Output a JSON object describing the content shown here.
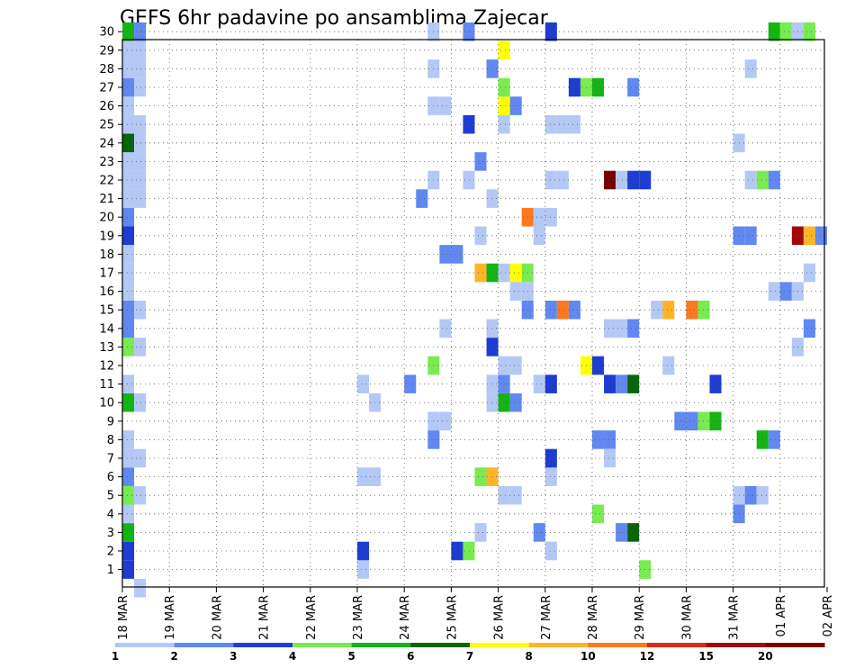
{
  "chart_data": {
    "type": "heatmap",
    "title": "GEFS 6hr padavine po ansamblima Zajecar",
    "x_ticks": [
      "18 MAR",
      "19 MAR",
      "20 MAR",
      "21 MAR",
      "22 MAR",
      "23 MAR",
      "24 MAR",
      "25 MAR",
      "26 MAR",
      "27 MAR",
      "28 MAR",
      "29 MAR",
      "30 MAR",
      "31 MAR",
      "01 APR",
      "02 APR"
    ],
    "y_ticks": [
      "1",
      "2",
      "3",
      "4",
      "5",
      "6",
      "7",
      "8",
      "9",
      "10",
      "11",
      "12",
      "13",
      "14",
      "15",
      "16",
      "17",
      "18",
      "19",
      "20",
      "21",
      "22",
      "23",
      "24",
      "25",
      "26",
      "27",
      "28",
      "29",
      "30"
    ],
    "colorbar": {
      "labels": [
        "1",
        "2",
        "3",
        "4",
        "5",
        "6",
        "7",
        "8",
        "10",
        "12",
        "15",
        "20"
      ],
      "colors": [
        "#b4c8f5",
        "#6088f0",
        "#1e3cd2",
        "#78eb50",
        "#14b414",
        "#0a640a",
        "#ffff00",
        "#ffb428",
        "#ff781e",
        "#dc2814",
        "#a00a0a",
        "#780000"
      ]
    },
    "grid": true,
    "cells": [
      [
        0.0,
        1,
        3
      ],
      [
        0.0,
        2,
        3
      ],
      [
        0.0,
        3,
        5
      ],
      [
        0.0,
        4,
        1
      ],
      [
        0.0,
        5,
        4
      ],
      [
        0.0,
        6,
        2
      ],
      [
        0.0,
        7,
        1
      ],
      [
        0.0,
        8,
        1
      ],
      [
        0.0,
        10,
        5
      ],
      [
        0.0,
        11,
        1
      ],
      [
        0.0,
        13,
        4
      ],
      [
        0.0,
        14,
        2
      ],
      [
        0.0,
        15,
        2
      ],
      [
        0.0,
        16,
        1
      ],
      [
        0.0,
        17,
        1
      ],
      [
        0.0,
        18,
        1
      ],
      [
        0.0,
        19,
        3
      ],
      [
        0.0,
        20,
        2
      ],
      [
        0.0,
        21,
        1
      ],
      [
        0.0,
        22,
        1
      ],
      [
        0.0,
        23,
        1
      ],
      [
        0.0,
        24,
        6
      ],
      [
        0.0,
        25,
        1
      ],
      [
        0.0,
        26,
        1
      ],
      [
        0.0,
        27,
        2
      ],
      [
        0.0,
        28,
        1
      ],
      [
        0.0,
        29,
        1
      ],
      [
        0.0,
        30,
        5
      ],
      [
        0.25,
        0,
        1
      ],
      [
        0.25,
        5,
        1
      ],
      [
        0.25,
        7,
        1
      ],
      [
        0.25,
        10,
        1
      ],
      [
        0.25,
        13,
        1
      ],
      [
        0.25,
        15,
        1
      ],
      [
        0.25,
        21,
        1
      ],
      [
        0.25,
        22,
        1
      ],
      [
        0.25,
        23,
        1
      ],
      [
        0.25,
        24,
        1
      ],
      [
        0.25,
        25,
        1
      ],
      [
        0.25,
        27,
        1
      ],
      [
        0.25,
        28,
        1
      ],
      [
        0.25,
        29,
        1
      ],
      [
        0.25,
        30,
        2
      ],
      [
        5.0,
        1,
        1
      ],
      [
        5.0,
        2,
        3
      ],
      [
        5.0,
        6,
        1
      ],
      [
        5.0,
        11,
        1
      ],
      [
        5.25,
        6,
        1
      ],
      [
        5.25,
        10,
        1
      ],
      [
        6.0,
        11,
        2
      ],
      [
        6.25,
        21,
        2
      ],
      [
        6.5,
        8,
        2
      ],
      [
        6.5,
        9,
        1
      ],
      [
        6.5,
        12,
        4
      ],
      [
        6.5,
        22,
        1
      ],
      [
        6.5,
        26,
        1
      ],
      [
        6.5,
        28,
        1
      ],
      [
        6.5,
        30,
        1
      ],
      [
        6.75,
        9,
        1
      ],
      [
        6.75,
        14,
        1
      ],
      [
        6.75,
        18,
        2
      ],
      [
        6.75,
        26,
        1
      ],
      [
        7.0,
        2,
        3
      ],
      [
        7.0,
        18,
        2
      ],
      [
        7.25,
        2,
        4
      ],
      [
        7.25,
        22,
        1
      ],
      [
        7.25,
        25,
        3
      ],
      [
        7.25,
        30,
        2
      ],
      [
        7.5,
        3,
        1
      ],
      [
        7.5,
        6,
        4
      ],
      [
        7.5,
        17,
        8
      ],
      [
        7.5,
        19,
        1
      ],
      [
        7.5,
        23,
        2
      ],
      [
        7.75,
        6,
        8
      ],
      [
        7.75,
        10,
        1
      ],
      [
        7.75,
        11,
        1
      ],
      [
        7.75,
        13,
        3
      ],
      [
        7.75,
        14,
        1
      ],
      [
        7.75,
        17,
        5
      ],
      [
        7.75,
        21,
        1
      ],
      [
        7.75,
        28,
        2
      ],
      [
        8.0,
        5,
        1
      ],
      [
        8.0,
        10,
        5
      ],
      [
        8.0,
        11,
        2
      ],
      [
        8.0,
        12,
        1
      ],
      [
        8.0,
        17,
        1
      ],
      [
        8.25,
        5,
        1
      ],
      [
        8.25,
        10,
        2
      ],
      [
        8.25,
        12,
        1
      ],
      [
        8.25,
        17,
        7
      ],
      [
        8.0,
        26,
        7
      ],
      [
        8.0,
        27,
        4
      ],
      [
        8.0,
        29,
        7
      ],
      [
        8.0,
        25,
        1
      ],
      [
        8.25,
        26,
        2
      ],
      [
        8.5,
        15,
        2
      ],
      [
        8.5,
        17,
        4
      ],
      [
        8.5,
        20,
        9
      ],
      [
        8.5,
        16,
        1
      ],
      [
        8.25,
        16,
        1
      ],
      [
        8.75,
        3,
        2
      ],
      [
        8.75,
        11,
        1
      ],
      [
        8.75,
        19,
        1
      ],
      [
        8.75,
        20,
        1
      ],
      [
        9.0,
        2,
        1
      ],
      [
        9.0,
        6,
        1
      ],
      [
        9.0,
        7,
        3
      ],
      [
        9.0,
        11,
        3
      ],
      [
        9.0,
        15,
        2
      ],
      [
        9.0,
        20,
        1
      ],
      [
        9.0,
        22,
        1
      ],
      [
        9.0,
        25,
        1
      ],
      [
        9.0,
        30,
        3
      ],
      [
        9.25,
        15,
        9
      ],
      [
        9.25,
        22,
        1
      ],
      [
        9.25,
        25,
        1
      ],
      [
        9.5,
        15,
        2
      ],
      [
        9.5,
        25,
        1
      ],
      [
        9.5,
        27,
        3
      ],
      [
        9.75,
        12,
        7
      ],
      [
        9.75,
        27,
        4
      ],
      [
        10.0,
        4,
        4
      ],
      [
        10.0,
        8,
        2
      ],
      [
        10.0,
        12,
        3
      ],
      [
        10.0,
        27,
        5
      ],
      [
        10.25,
        8,
        2
      ],
      [
        10.25,
        22,
        12
      ],
      [
        10.25,
        11,
        3
      ],
      [
        10.25,
        7,
        1
      ],
      [
        10.25,
        14,
        1
      ],
      [
        10.5,
        3,
        2
      ],
      [
        10.5,
        11,
        2
      ],
      [
        10.5,
        14,
        1
      ],
      [
        10.5,
        22,
        1
      ],
      [
        10.75,
        3,
        6
      ],
      [
        10.75,
        11,
        6
      ],
      [
        10.75,
        14,
        2
      ],
      [
        10.75,
        22,
        3
      ],
      [
        10.75,
        27,
        2
      ],
      [
        11.0,
        22,
        3
      ],
      [
        11.0,
        1,
        4
      ],
      [
        11.25,
        15,
        1
      ],
      [
        11.5,
        15,
        8
      ],
      [
        11.5,
        12,
        1
      ],
      [
        11.75,
        9,
        2
      ],
      [
        12.0,
        9,
        2
      ],
      [
        12.0,
        15,
        9
      ],
      [
        12.25,
        9,
        4
      ],
      [
        12.25,
        15,
        4
      ],
      [
        12.5,
        9,
        5
      ],
      [
        12.5,
        11,
        3
      ],
      [
        13.0,
        4,
        2
      ],
      [
        13.0,
        5,
        1
      ],
      [
        13.0,
        19,
        2
      ],
      [
        13.25,
        5,
        2
      ],
      [
        13.25,
        19,
        2
      ],
      [
        13.0,
        24,
        1
      ],
      [
        13.25,
        22,
        1
      ],
      [
        13.25,
        28,
        1
      ],
      [
        13.5,
        5,
        1
      ],
      [
        13.5,
        8,
        5
      ],
      [
        13.5,
        22,
        4
      ],
      [
        13.75,
        8,
        2
      ],
      [
        13.75,
        22,
        2
      ],
      [
        13.75,
        30,
        5
      ],
      [
        13.75,
        16,
        1
      ],
      [
        14.0,
        16,
        2
      ],
      [
        14.0,
        30,
        4
      ],
      [
        14.25,
        13,
        1
      ],
      [
        14.25,
        16,
        1
      ],
      [
        14.25,
        19,
        11
      ],
      [
        14.25,
        30,
        1
      ],
      [
        14.5,
        14,
        2
      ],
      [
        14.5,
        17,
        1
      ],
      [
        14.5,
        19,
        8
      ],
      [
        14.5,
        30,
        4
      ],
      [
        14.75,
        19,
        2
      ]
    ]
  }
}
